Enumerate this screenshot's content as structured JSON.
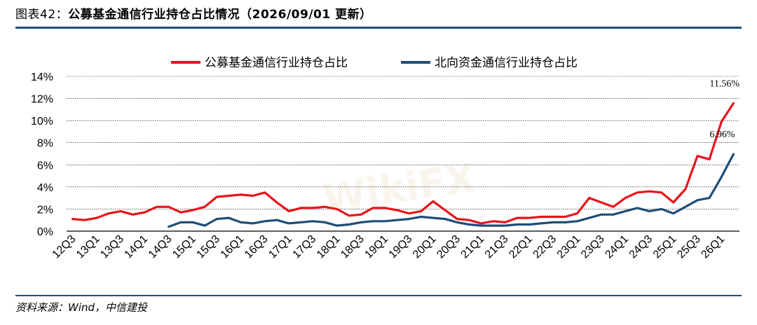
{
  "header": {
    "figure_label": "图表42：",
    "title": "公募基金通信行业持仓占比情况（2026/09/01 更新）"
  },
  "footer": {
    "source": "资料来源：Wind，中信建投"
  },
  "watermark": "WikiFX",
  "colors": {
    "series1": "#e8141b",
    "series2": "#1f4e79",
    "grid": "#000000",
    "accent": "#1f4e79"
  },
  "chart_data": {
    "type": "line",
    "ylim": [
      0,
      14
    ],
    "yticks": [
      "0%",
      "2%",
      "4%",
      "6%",
      "8%",
      "10%",
      "12%",
      "14%"
    ],
    "grid": true,
    "legend_position": "top",
    "x": [
      "12Q3",
      "12Q4",
      "13Q1",
      "13Q2",
      "13Q3",
      "13Q4",
      "14Q1",
      "14Q2",
      "14Q3",
      "14Q4",
      "15Q1",
      "15Q2",
      "15Q3",
      "15Q4",
      "16Q1",
      "16Q2",
      "16Q3",
      "16Q4",
      "17Q1",
      "17Q2",
      "17Q3",
      "17Q4",
      "18Q1",
      "18Q2",
      "18Q3",
      "18Q4",
      "19Q1",
      "19Q2",
      "19Q3",
      "19Q4",
      "20Q1",
      "20Q2",
      "20Q3",
      "20Q4",
      "21Q1",
      "21Q2",
      "21Q3",
      "21Q4",
      "22Q1",
      "22Q2",
      "22Q3",
      "22Q4",
      "23Q1",
      "23Q2",
      "23Q3",
      "23Q4",
      "24Q1",
      "24Q2",
      "24Q3",
      "24Q4",
      "25Q1",
      "25Q2",
      "25Q3",
      "25Q4",
      "26Q1",
      "26Q2"
    ],
    "xtick_labels": [
      "12Q3",
      "13Q1",
      "13Q3",
      "14Q1",
      "14Q3",
      "15Q1",
      "15Q3",
      "16Q1",
      "16Q3",
      "17Q1",
      "17Q3",
      "18Q1",
      "18Q3",
      "19Q1",
      "19Q3",
      "20Q1",
      "20Q3",
      "21Q1",
      "21Q3",
      "22Q1",
      "22Q3",
      "23Q1",
      "23Q3",
      "24Q1",
      "24Q3",
      "25Q1",
      "25Q3",
      "26Q1"
    ],
    "series": [
      {
        "name": "公募基金通信行业持仓占比",
        "values": [
          1.1,
          1.0,
          1.2,
          1.6,
          1.8,
          1.5,
          1.7,
          2.2,
          2.2,
          1.7,
          1.9,
          2.2,
          3.1,
          3.2,
          3.3,
          3.2,
          3.5,
          2.6,
          1.8,
          2.1,
          2.1,
          2.2,
          2.0,
          1.4,
          1.5,
          2.1,
          2.1,
          1.9,
          1.6,
          1.8,
          2.7,
          1.9,
          1.1,
          1.0,
          0.7,
          0.9,
          0.8,
          1.2,
          1.2,
          1.3,
          1.3,
          1.3,
          1.6,
          3.0,
          2.6,
          2.2,
          3.0,
          3.5,
          3.6,
          3.5,
          2.6,
          3.8,
          6.8,
          6.5,
          9.9,
          11.56
        ],
        "end_label": "11.56%"
      },
      {
        "name": "北向资金通信行业持仓占比",
        "values": [
          null,
          null,
          null,
          null,
          null,
          null,
          null,
          null,
          0.4,
          0.8,
          0.8,
          0.5,
          1.1,
          1.2,
          0.8,
          0.7,
          0.9,
          1.0,
          0.7,
          0.8,
          0.9,
          0.8,
          0.5,
          0.6,
          0.8,
          0.9,
          0.9,
          1.0,
          1.1,
          1.3,
          1.2,
          1.1,
          0.8,
          0.6,
          0.5,
          0.5,
          0.5,
          0.6,
          0.6,
          0.7,
          0.8,
          0.8,
          0.9,
          1.2,
          1.5,
          1.5,
          1.8,
          2.1,
          1.8,
          2.0,
          1.6,
          2.2,
          2.8,
          3.0,
          4.9,
          6.96
        ],
        "end_label": "6.96%"
      }
    ]
  }
}
